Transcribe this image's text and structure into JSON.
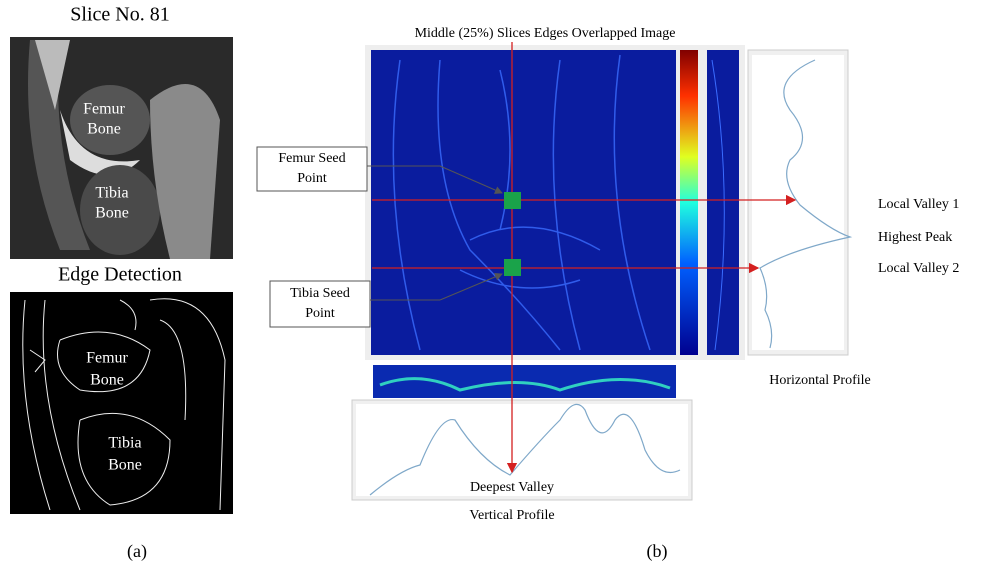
{
  "panel_a": {
    "slice_title": "Slice No. 81",
    "slice_labels": {
      "femur": [
        "Femur",
        "Bone"
      ],
      "tibia": [
        "Tibia",
        "Bone"
      ]
    },
    "edge_title": "Edge Detection",
    "edge_labels": {
      "femur": [
        "Femur",
        "Bone"
      ],
      "tibia": [
        "Tibia",
        "Bone"
      ]
    },
    "caption": "(a)"
  },
  "panel_b": {
    "title": "Middle (25%) Slices Edges Overlapped Image",
    "femur_seed": [
      "Femur Seed",
      "Point"
    ],
    "tibia_seed": [
      "Tibia Seed",
      "Point"
    ],
    "local_valley_1": "Local Valley 1",
    "highest_peak": "Highest Peak",
    "local_valley_2": "Local Valley 2",
    "horizontal_profile": "Horizontal Profile",
    "deepest_valley": "Deepest Valley",
    "vertical_profile": "Vertical Profile",
    "caption": "(b)"
  }
}
